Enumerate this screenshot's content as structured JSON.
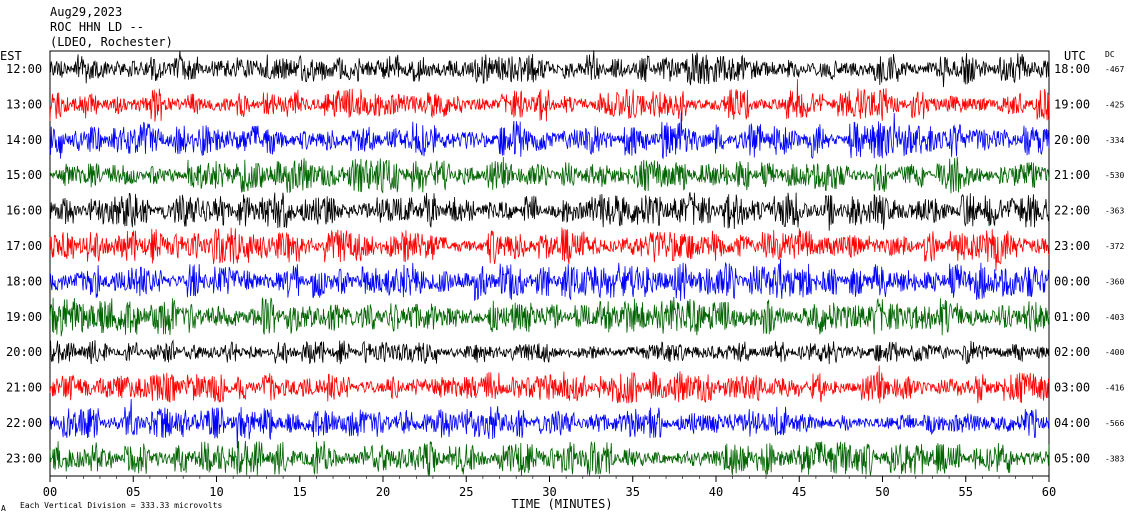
{
  "header": {
    "date": "Aug29,2023",
    "station": "ROC HHN LD --",
    "location": "(LDEO, Rochester)"
  },
  "footer": {
    "scale_note": "Each Vertical Division =  333.33 microvolts",
    "corner_mark": "A"
  },
  "chart_data": {
    "type": "line",
    "title": "",
    "xlabel": "TIME (MINUTES)",
    "ylabel": "",
    "xlim": [
      0,
      60
    ],
    "x_ticks": [
      "00",
      "05",
      "10",
      "15",
      "20",
      "25",
      "30",
      "35",
      "40",
      "45",
      "50",
      "55",
      "60"
    ],
    "left_axis_label": "EST",
    "right_axis_label": "UTC",
    "dc_label": "DC",
    "grid": false,
    "trace_colors": [
      "#000000",
      "#ff0000",
      "#0000ff",
      "#006400"
    ],
    "traces": [
      {
        "est": "12:00",
        "utc": "18:00",
        "dc": "-467",
        "activity": 0.75
      },
      {
        "est": "13:00",
        "utc": "19:00",
        "dc": "-425",
        "activity": 0.8
      },
      {
        "est": "14:00",
        "utc": "20:00",
        "dc": "-334",
        "activity": 0.9
      },
      {
        "est": "15:00",
        "utc": "21:00",
        "dc": "-530",
        "activity": 0.85
      },
      {
        "est": "16:00",
        "utc": "22:00",
        "dc": "-363",
        "activity": 0.85
      },
      {
        "est": "17:00",
        "utc": "23:00",
        "dc": "-372",
        "activity": 0.85
      },
      {
        "est": "18:00",
        "utc": "00:00",
        "dc": "-360",
        "activity": 0.9
      },
      {
        "est": "19:00",
        "utc": "01:00",
        "dc": "-403",
        "activity": 0.95
      },
      {
        "est": "20:00",
        "utc": "02:00",
        "dc": "-400",
        "activity": 0.55
      },
      {
        "est": "21:00",
        "utc": "03:00",
        "dc": "-416",
        "activity": 0.75
      },
      {
        "est": "22:00",
        "utc": "04:00",
        "dc": "-566",
        "activity": 0.8
      },
      {
        "est": "23:00",
        "utc": "05:00",
        "dc": "-383",
        "activity": 0.85
      }
    ]
  }
}
